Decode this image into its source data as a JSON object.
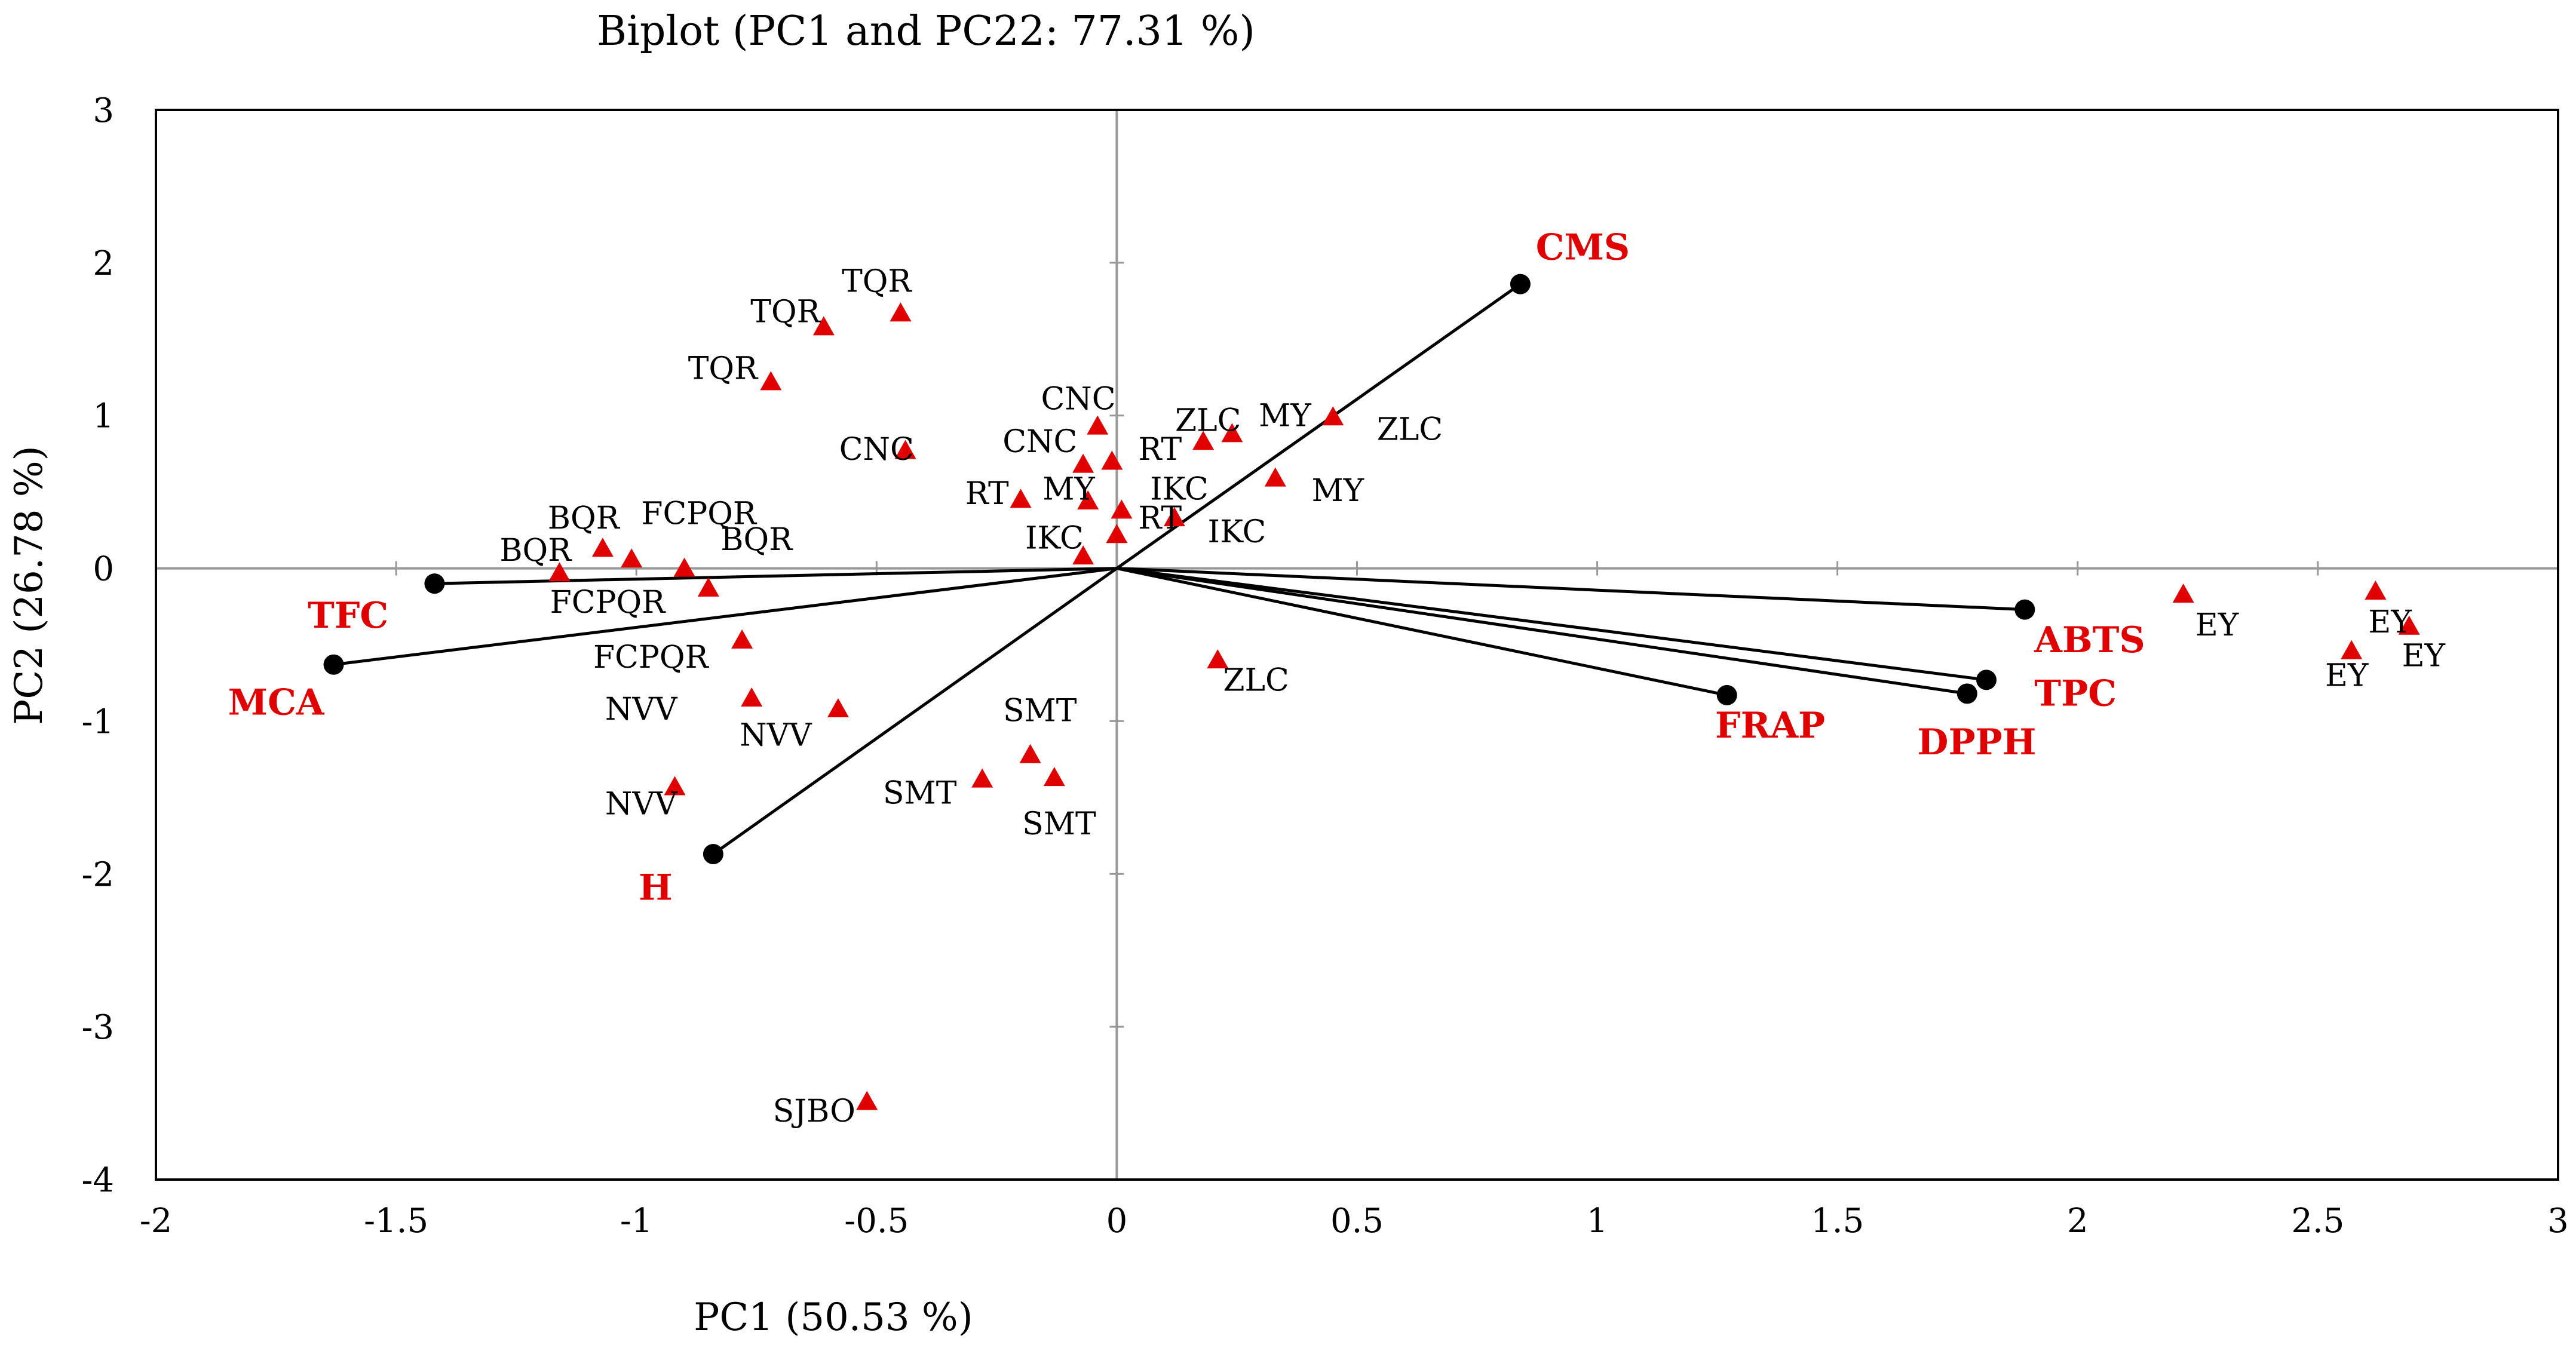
{
  "chart_data": {
    "type": "scatter",
    "title": "Biplot (PC1 and PC22: 77.31 %)",
    "xlabel": "PC1 (50.53 %)",
    "ylabel": "PC2 (26.78 %)",
    "xlim": [
      -2,
      3
    ],
    "ylim": [
      -4,
      3
    ],
    "xticks": [
      -2,
      -1.5,
      -1,
      -0.5,
      0,
      0.5,
      1,
      1.5,
      2,
      2.5,
      3
    ],
    "yticks": [
      -4,
      -3,
      -2,
      -1,
      0,
      1,
      2,
      3
    ],
    "colors": {
      "observation": "#e00000",
      "variable": "#000000",
      "variable_label": "#e00000",
      "frame": "#000000",
      "axis_zero": "#999999"
    },
    "observations": [
      {
        "label": "TQR",
        "x": -0.45,
        "y": 1.67,
        "lx": -0.5,
        "ly": 1.88
      },
      {
        "label": "TQR",
        "x": -0.61,
        "y": 1.58,
        "lx": -0.69,
        "ly": 1.68
      },
      {
        "label": "TQR",
        "x": -0.72,
        "y": 1.22,
        "lx": -0.82,
        "ly": 1.31
      },
      {
        "label": "CNC",
        "x": -0.44,
        "y": 0.77,
        "lx": -0.5,
        "ly": 0.78
      },
      {
        "label": "CNC",
        "x": -0.04,
        "y": 0.93,
        "lx": -0.08,
        "ly": 1.11
      },
      {
        "label": "CNC",
        "x": -0.07,
        "y": 0.68,
        "lx": -0.16,
        "ly": 0.83
      },
      {
        "label": "RT",
        "x": -0.01,
        "y": 0.7,
        "lx": 0.09,
        "ly": 0.78
      },
      {
        "label": "RT",
        "x": -0.2,
        "y": 0.45,
        "lx": -0.27,
        "ly": 0.49
      },
      {
        "label": "RT",
        "x": 0.01,
        "y": 0.38,
        "lx": 0.09,
        "ly": 0.33
      },
      {
        "label": "MY",
        "x": -0.06,
        "y": 0.44,
        "lx": -0.1,
        "ly": 0.52
      },
      {
        "label": "MY",
        "x": 0.45,
        "y": 0.99,
        "lx": 0.35,
        "ly": 1.0
      },
      {
        "label": "MY",
        "x": 0.33,
        "y": 0.59,
        "lx": 0.46,
        "ly": 0.51
      },
      {
        "label": "ZLC",
        "x": 0.18,
        "y": 0.83,
        "lx": 0.19,
        "ly": 0.97
      },
      {
        "label": "ZLC",
        "x": 0.24,
        "y": 0.88,
        "lx": 0.61,
        "ly": 0.91
      },
      {
        "label": "ZLC",
        "x": 0.21,
        "y": -0.6,
        "lx": 0.29,
        "ly": -0.73
      },
      {
        "label": "IKC",
        "x": 0.12,
        "y": 0.33,
        "lx": 0.13,
        "ly": 0.52
      },
      {
        "label": "IKC",
        "x": 0.0,
        "y": 0.22,
        "lx": -0.13,
        "ly": 0.2
      },
      {
        "label": "IKC",
        "x": -0.07,
        "y": 0.08,
        "lx": 0.25,
        "ly": 0.24
      },
      {
        "label": "BQR",
        "x": -1.07,
        "y": 0.13,
        "lx": -1.11,
        "ly": 0.33
      },
      {
        "label": "BQR",
        "x": -1.16,
        "y": -0.03,
        "lx": -1.21,
        "ly": 0.12
      },
      {
        "label": "BQR",
        "x": -0.9,
        "y": 0.0,
        "lx": -0.75,
        "ly": 0.19
      },
      {
        "label": "FCPQR",
        "x": -1.01,
        "y": 0.06,
        "lx": -0.87,
        "ly": 0.36
      },
      {
        "label": "FCPQR",
        "x": -0.85,
        "y": -0.13,
        "lx": -1.06,
        "ly": -0.22
      },
      {
        "label": "FCPQR",
        "x": -0.78,
        "y": -0.47,
        "lx": -0.97,
        "ly": -0.58
      },
      {
        "label": "NVV",
        "x": -0.76,
        "y": -0.85,
        "lx": -0.99,
        "ly": -0.92
      },
      {
        "label": "NVV",
        "x": -0.58,
        "y": -0.92,
        "lx": -0.71,
        "ly": -1.09
      },
      {
        "label": "NVV",
        "x": -0.92,
        "y": -1.43,
        "lx": -0.99,
        "ly": -1.54
      },
      {
        "label": "SMT",
        "x": -0.18,
        "y": -1.22,
        "lx": -0.16,
        "ly": -0.93
      },
      {
        "label": "SMT",
        "x": -0.28,
        "y": -1.38,
        "lx": -0.41,
        "ly": -1.47
      },
      {
        "label": "SMT",
        "x": -0.13,
        "y": -1.37,
        "lx": -0.12,
        "ly": -1.67
      },
      {
        "label": "SJBO",
        "x": -0.52,
        "y": -3.49,
        "lx": -0.63,
        "ly": -3.55
      },
      {
        "label": "EY",
        "x": 2.22,
        "y": -0.17,
        "lx": 2.29,
        "ly": -0.37
      },
      {
        "label": "EY",
        "x": 2.62,
        "y": -0.15,
        "lx": 2.65,
        "ly": -0.35
      },
      {
        "label": "EY",
        "x": 2.69,
        "y": -0.38,
        "lx": 2.72,
        "ly": -0.57
      },
      {
        "label": "EY",
        "x": 2.57,
        "y": -0.54,
        "lx": 2.56,
        "ly": -0.7
      }
    ],
    "variables": [
      {
        "label": "CMS",
        "x": 0.84,
        "y": 1.86,
        "lx": 0.97,
        "ly": 2.1,
        "anchor": "middle"
      },
      {
        "label": "ABTS",
        "x": 1.89,
        "y": -0.27,
        "lx": 1.91,
        "ly": -0.47,
        "anchor": "start"
      },
      {
        "label": "TPC",
        "x": 1.81,
        "y": -0.73,
        "lx": 1.91,
        "ly": -0.82,
        "anchor": "start"
      },
      {
        "label": "DPPH",
        "x": 1.77,
        "y": -0.82,
        "lx": 1.79,
        "ly": -1.14,
        "anchor": "middle"
      },
      {
        "label": "FRAP",
        "x": 1.27,
        "y": -0.83,
        "lx": 1.36,
        "ly": -1.03,
        "anchor": "middle"
      },
      {
        "label": "TFC",
        "x": -1.42,
        "y": -0.1,
        "lx": -1.6,
        "ly": -0.31,
        "anchor": "middle"
      },
      {
        "label": "MCA",
        "x": -1.63,
        "y": -0.63,
        "lx": -1.75,
        "ly": -0.88,
        "anchor": "middle"
      },
      {
        "label": "H",
        "x": -0.84,
        "y": -1.87,
        "lx": -0.96,
        "ly": -2.09,
        "anchor": "middle"
      }
    ]
  }
}
